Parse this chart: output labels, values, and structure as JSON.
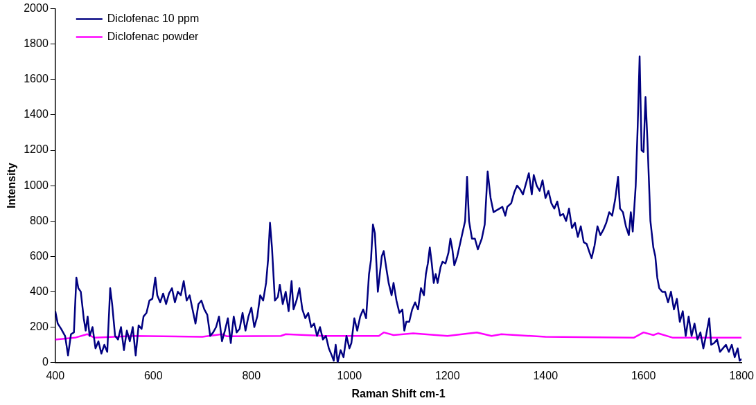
{
  "chart_data": {
    "type": "line",
    "xlabel": "Raman Shift cm-1",
    "ylabel": "Intensity",
    "xlim": [
      400,
      1800
    ],
    "xticks": [
      400,
      600,
      800,
      1000,
      1200,
      1400,
      1600,
      1800
    ],
    "ylim": [
      0,
      2000
    ],
    "yticks": [
      0,
      200,
      400,
      600,
      800,
      1000,
      1200,
      1400,
      1600,
      1800,
      2000
    ],
    "grid": false,
    "legend": "top left",
    "marker": "none",
    "line_style": "solid",
    "series": [
      {
        "name": "Diclofenac 10 ppm",
        "color": "#000080",
        "x": [
          400,
          405,
          412,
          420,
          426,
          432,
          438,
          443,
          447,
          452,
          458,
          462,
          466,
          470,
          476,
          482,
          488,
          494,
          500,
          506,
          512,
          516,
          522,
          528,
          534,
          540,
          546,
          552,
          558,
          564,
          570,
          576,
          580,
          586,
          592,
          598,
          604,
          608,
          614,
          620,
          626,
          632,
          638,
          644,
          650,
          656,
          662,
          668,
          674,
          680,
          686,
          692,
          698,
          704,
          710,
          716,
          722,
          728,
          734,
          740,
          746,
          752,
          758,
          764,
          770,
          776,
          782,
          788,
          794,
          800,
          806,
          812,
          818,
          824,
          830,
          834,
          838,
          842,
          848,
          854,
          858,
          864,
          870,
          876,
          882,
          886,
          892,
          898,
          904,
          910,
          916,
          922,
          928,
          934,
          940,
          946,
          952,
          958,
          964,
          968,
          972,
          976,
          982,
          988,
          994,
          1000,
          1004,
          1010,
          1016,
          1022,
          1028,
          1034,
          1040,
          1044,
          1048,
          1052,
          1058,
          1062,
          1066,
          1070,
          1076,
          1080,
          1086,
          1090,
          1096,
          1102,
          1108,
          1112,
          1116,
          1122,
          1128,
          1134,
          1140,
          1146,
          1152,
          1156,
          1160,
          1164,
          1168,
          1172,
          1176,
          1180,
          1186,
          1190,
          1196,
          1202,
          1206,
          1210,
          1214,
          1220,
          1228,
          1236,
          1240,
          1244,
          1250,
          1256,
          1262,
          1266,
          1270,
          1276,
          1282,
          1288,
          1294,
          1300,
          1306,
          1312,
          1318,
          1322,
          1330,
          1336,
          1342,
          1348,
          1354,
          1360,
          1366,
          1372,
          1376,
          1382,
          1388,
          1394,
          1400,
          1406,
          1412,
          1418,
          1424,
          1430,
          1436,
          1442,
          1448,
          1454,
          1460,
          1466,
          1472,
          1478,
          1484,
          1490,
          1494,
          1500,
          1506,
          1512,
          1518,
          1524,
          1530,
          1536,
          1542,
          1548,
          1552,
          1558,
          1564,
          1570,
          1574,
          1578,
          1584,
          1588,
          1592,
          1596,
          1600,
          1604,
          1608,
          1614,
          1620,
          1624,
          1628,
          1632,
          1638,
          1644,
          1650,
          1656,
          1662,
          1668,
          1674,
          1680,
          1686,
          1692,
          1698,
          1704,
          1710,
          1716,
          1722,
          1728,
          1734,
          1738,
          1744,
          1750,
          1756,
          1762,
          1768,
          1774,
          1780,
          1786,
          1792,
          1796,
          1800
        ],
        "values": [
          290,
          220,
          190,
          150,
          40,
          160,
          170,
          480,
          420,
          400,
          250,
          180,
          260,
          150,
          200,
          80,
          120,
          50,
          100,
          60,
          420,
          330,
          150,
          130,
          200,
          70,
          180,
          120,
          200,
          40,
          210,
          190,
          260,
          280,
          350,
          360,
          480,
          380,
          340,
          390,
          330,
          390,
          420,
          340,
          400,
          380,
          460,
          350,
          380,
          300,
          220,
          330,
          350,
          300,
          270,
          150,
          170,
          200,
          260,
          120,
          180,
          250,
          110,
          260,
          170,
          190,
          280,
          180,
          260,
          310,
          200,
          260,
          380,
          350,
          450,
          580,
          790,
          650,
          350,
          370,
          440,
          330,
          400,
          290,
          460,
          300,
          350,
          420,
          300,
          250,
          280,
          200,
          220,
          150,
          200,
          130,
          150,
          80,
          40,
          10,
          100,
          0,
          70,
          30,
          150,
          80,
          110,
          250,
          180,
          260,
          300,
          250,
          500,
          580,
          780,
          730,
          400,
          500,
          600,
          630,
          520,
          450,
          380,
          450,
          350,
          280,
          300,
          180,
          230,
          230,
          300,
          340,
          300,
          420,
          380,
          500,
          560,
          650,
          560,
          450,
          500,
          450,
          540,
          570,
          560,
          620,
          700,
          640,
          550,
          600,
          700,
          800,
          1050,
          800,
          700,
          700,
          640,
          670,
          700,
          780,
          1080,
          930,
          850,
          860,
          870,
          880,
          830,
          880,
          900,
          960,
          1000,
          980,
          950,
          1010,
          1070,
          950,
          1060,
          1000,
          970,
          1030,
          930,
          970,
          900,
          870,
          910,
          830,
          840,
          800,
          870,
          760,
          790,
          710,
          770,
          680,
          670,
          620,
          590,
          660,
          770,
          720,
          750,
          790,
          850,
          830,
          920,
          1050,
          870,
          850,
          770,
          720,
          850,
          740,
          1000,
          1330,
          1730,
          1200,
          1190,
          1500,
          1250,
          800,
          650,
          600,
          480,
          420,
          400,
          400,
          340,
          400,
          300,
          360,
          230,
          290,
          150,
          260,
          150,
          220,
          130,
          170,
          80,
          160,
          250,
          100,
          110,
          130,
          60,
          80,
          100,
          60,
          100,
          30,
          80,
          10,
          20
        ]
      },
      {
        "name": "Diclofenac powder",
        "color": "#ff00ff",
        "x": [
          400,
          440,
          465,
          480,
          560,
          700,
          740,
          750,
          860,
          870,
          950,
          1060,
          1070,
          1090,
          1130,
          1200,
          1260,
          1290,
          1310,
          1400,
          1580,
          1600,
          1620,
          1630,
          1660,
          1800
        ],
        "values": [
          130,
          140,
          160,
          140,
          150,
          145,
          160,
          148,
          150,
          160,
          150,
          150,
          170,
          155,
          165,
          150,
          170,
          150,
          160,
          145,
          140,
          170,
          155,
          165,
          140,
          140
        ]
      }
    ]
  }
}
